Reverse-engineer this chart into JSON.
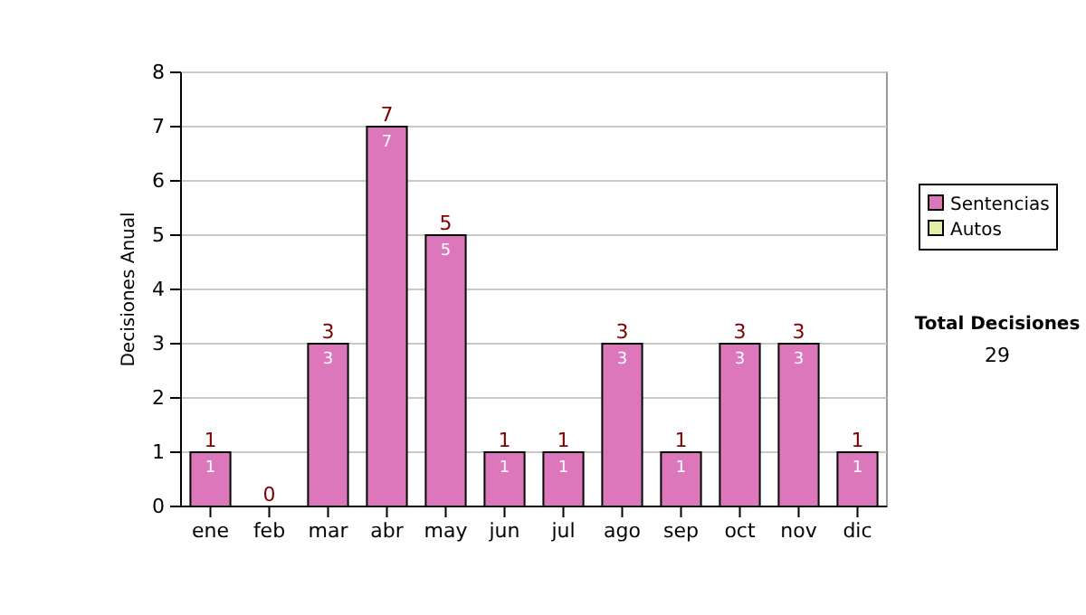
{
  "chart_data": {
    "type": "bar",
    "stacked": true,
    "ylabel": "Decisiones Anual",
    "categories": [
      "ene",
      "feb",
      "mar",
      "abr",
      "may",
      "jun",
      "jul",
      "ago",
      "sep",
      "oct",
      "nov",
      "dic"
    ],
    "series": [
      {
        "name": "Sentencias",
        "color": "#dd77bb",
        "values": [
          1,
          0,
          3,
          7,
          5,
          1,
          1,
          3,
          1,
          3,
          3,
          1
        ],
        "value_labels": [
          "1",
          null,
          "3",
          "7",
          "5",
          "1",
          "1",
          "3",
          "1",
          "3",
          "3",
          "1"
        ]
      },
      {
        "name": "Autos",
        "color": "#e4eea8",
        "values": [
          0,
          0,
          0,
          0,
          0,
          0,
          0,
          0,
          0,
          0,
          0,
          0
        ]
      }
    ],
    "totals": [
      "1",
      "0",
      "3",
      "7",
      "5",
      "1",
      "1",
      "3",
      "1",
      "3",
      "3",
      "1"
    ],
    "ylim": [
      0,
      8
    ],
    "yticks": [
      0,
      1,
      2,
      3,
      4,
      5,
      6,
      7,
      8
    ],
    "grid": "y",
    "legend": "right",
    "annotations": [
      "Total Decisiones",
      "29"
    ]
  }
}
